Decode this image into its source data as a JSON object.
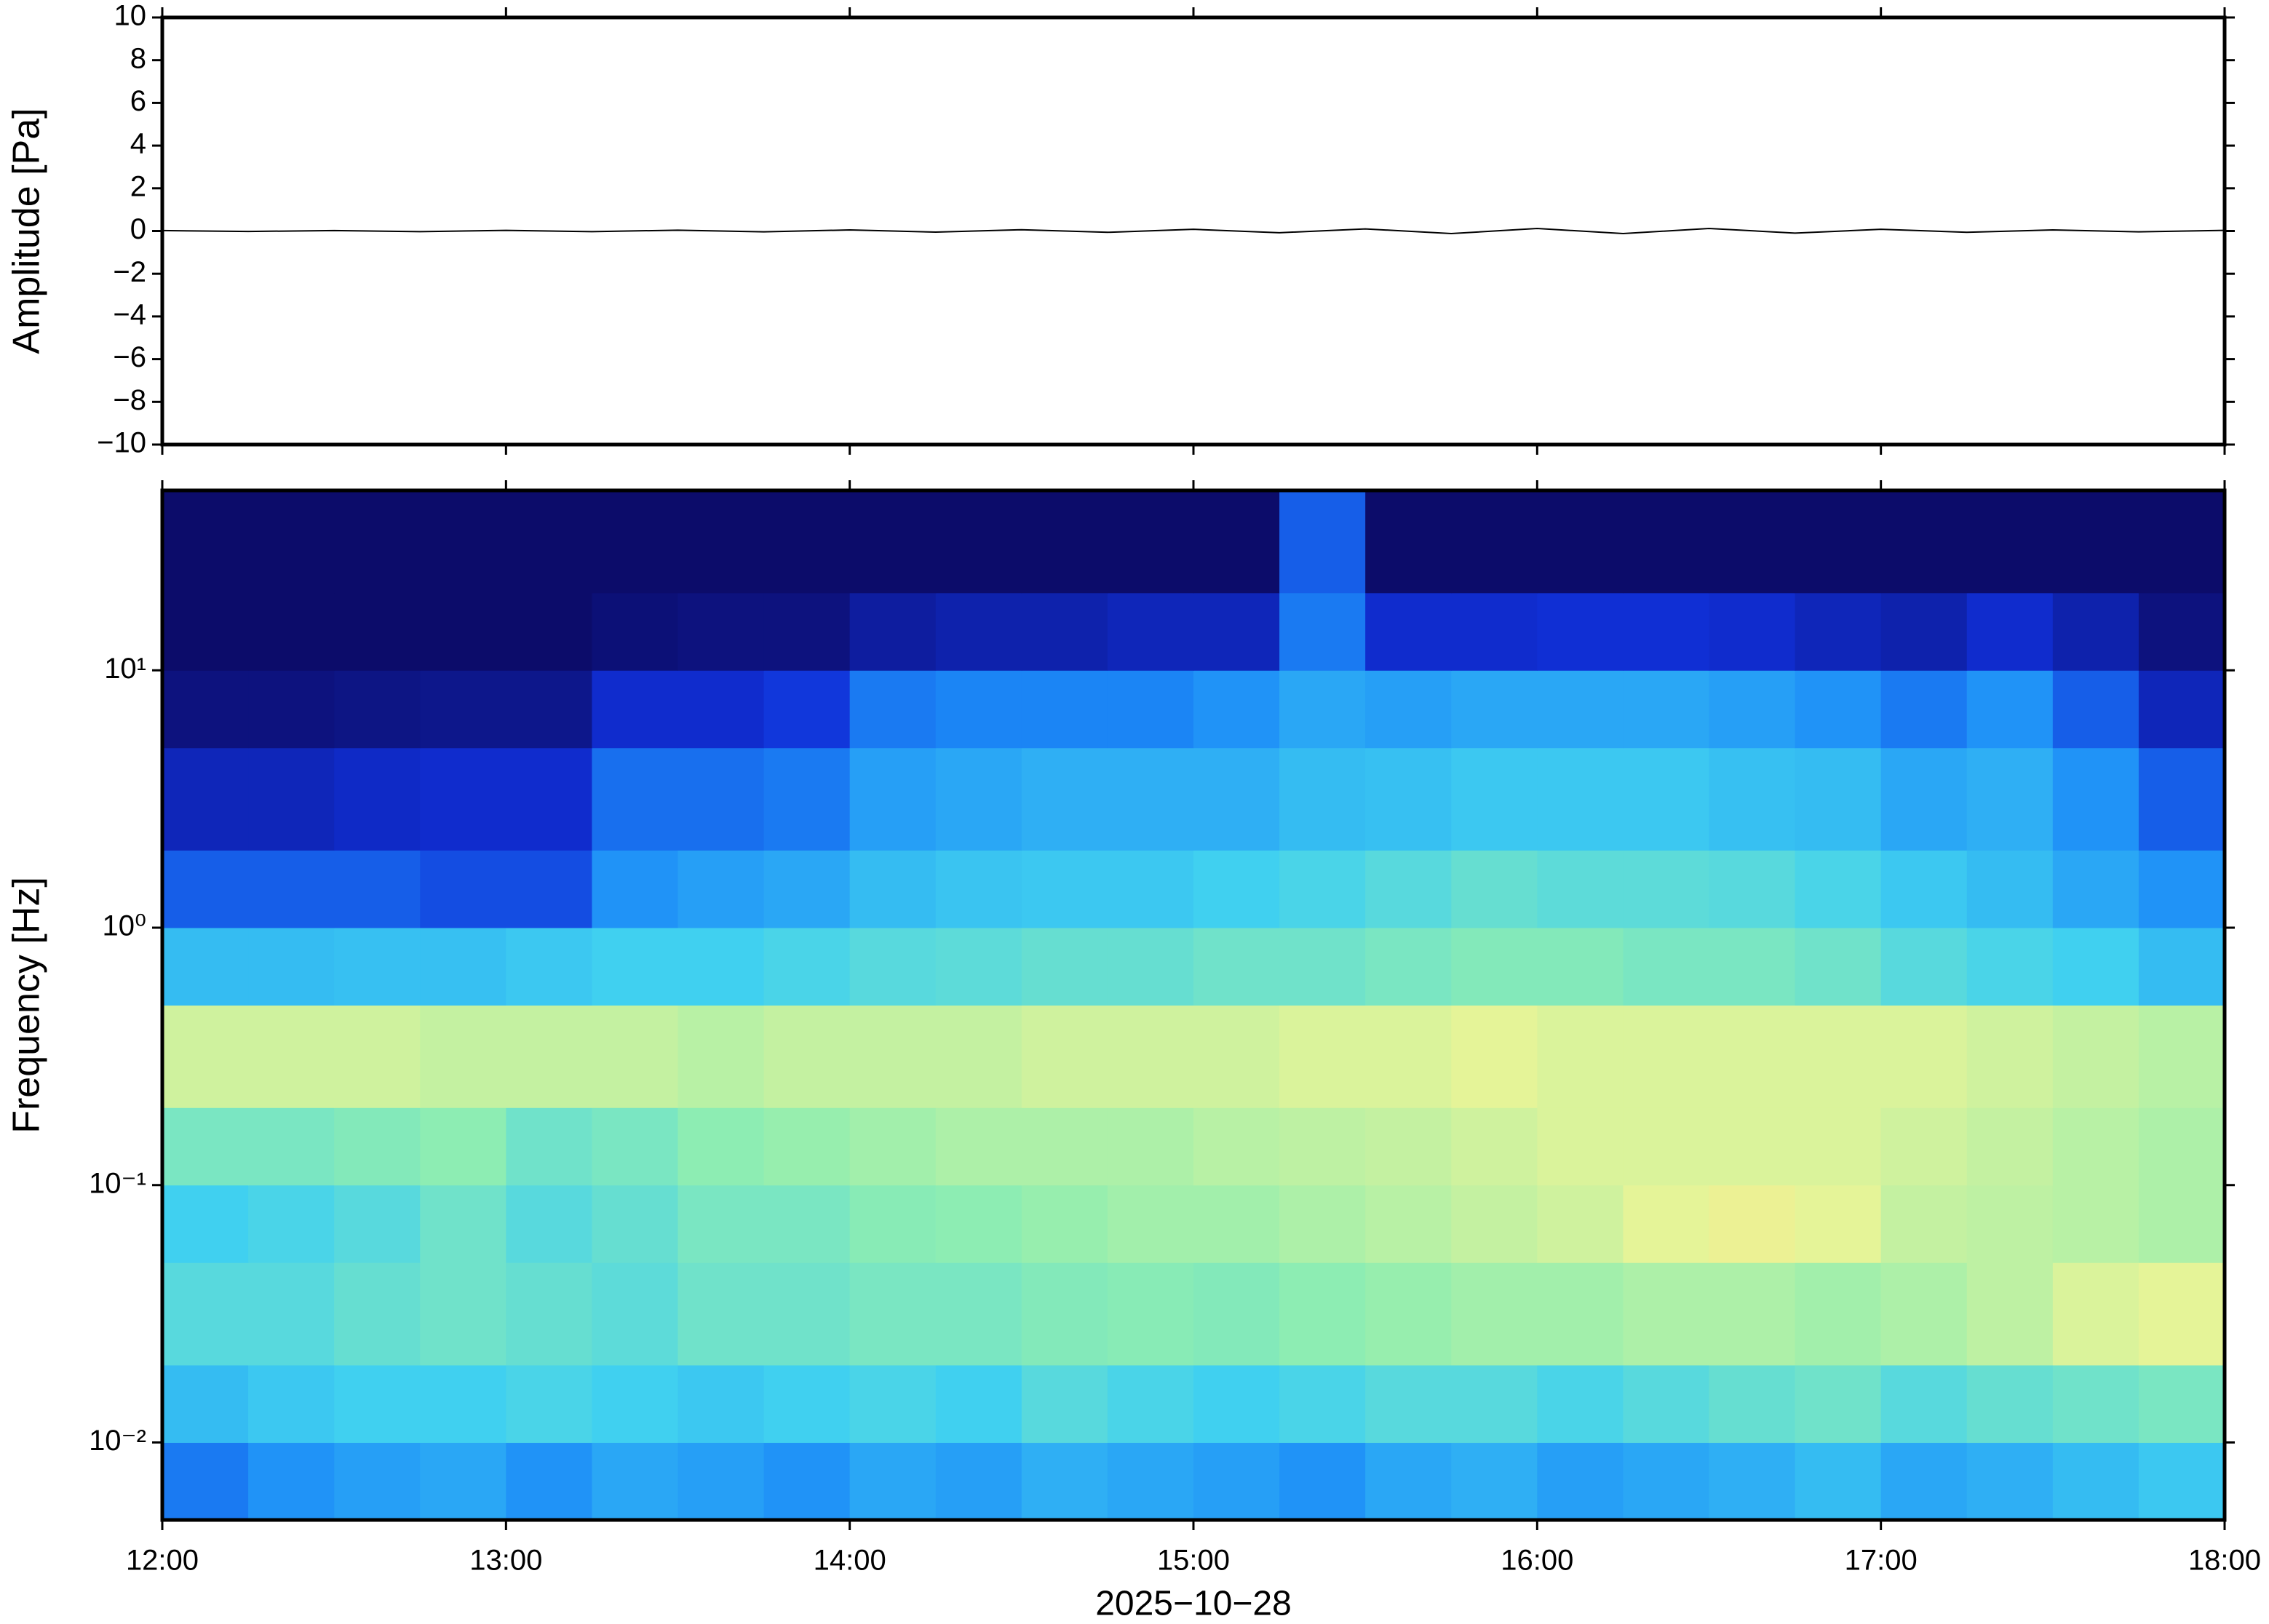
{
  "chart_data": [
    {
      "type": "line",
      "ylabel": "Amplitude [Pa]",
      "color": "#000000",
      "xlim": [
        12,
        18
      ],
      "xticks": [
        12,
        13,
        14,
        15,
        16,
        17,
        18
      ],
      "ylim": [
        -10,
        10
      ],
      "yticks": [
        {
          "value": -10,
          "label": "−10"
        },
        {
          "value": -8,
          "label": "−8"
        },
        {
          "value": -6,
          "label": "−6"
        },
        {
          "value": -4,
          "label": "−4"
        },
        {
          "value": -2,
          "label": "−2"
        },
        0,
        2,
        4,
        6,
        8,
        10
      ],
      "x": [
        12,
        12.25,
        12.5,
        12.75,
        13,
        13.25,
        13.5,
        13.75,
        14,
        14.25,
        14.5,
        14.75,
        15,
        15.25,
        15.5,
        15.75,
        16,
        16.25,
        16.5,
        16.75,
        17,
        17.25,
        17.5,
        17.75,
        18
      ],
      "values": [
        0.02,
        -0.02,
        0.02,
        -0.03,
        0.03,
        -0.03,
        0.04,
        -0.04,
        0.05,
        -0.05,
        0.06,
        -0.06,
        0.08,
        -0.08,
        0.1,
        -0.12,
        0.12,
        -0.12,
        0.12,
        -0.1,
        0.08,
        -0.06,
        0.05,
        -0.04,
        0.03
      ]
    },
    {
      "type": "heatmap",
      "ylabel": "Frequency [Hz]",
      "xlabel": "2025−10−28",
      "log_y": true,
      "xlim": [
        12,
        18
      ],
      "xticks": [
        {
          "value": 12,
          "label": "12:00"
        },
        {
          "value": 13,
          "label": "13:00"
        },
        {
          "value": 14,
          "label": "14:00"
        },
        {
          "value": 15,
          "label": "15:00"
        },
        {
          "value": 16,
          "label": "16:00"
        },
        {
          "value": 17,
          "label": "17:00"
        },
        {
          "value": 18,
          "label": "18:00"
        }
      ],
      "ylim": [
        0.005,
        50
      ],
      "yticks": [
        {
          "value": 0.01,
          "label": "10⁻²"
        },
        {
          "value": 0.1,
          "label": "10⁻¹"
        },
        {
          "value": 1,
          "label": "10⁰"
        },
        {
          "value": 10,
          "label": "10¹"
        }
      ],
      "zlim": [
        0,
        1
      ],
      "colormap": [
        "#0c0c6a",
        "#1030d8",
        "#1c8cf8",
        "#40d0f0",
        "#90eeb0",
        "#ecf496",
        "#f0b070"
      ],
      "x_edges": [
        12,
        12.25,
        12.5,
        12.75,
        13,
        13.25,
        13.5,
        13.75,
        14,
        14.25,
        14.5,
        14.75,
        15,
        15.25,
        15.5,
        15.75,
        16,
        16.25,
        16.5,
        16.75,
        17,
        17.25,
        17.5,
        17.75,
        18
      ],
      "y_edges": [
        0.005,
        0.01,
        0.02,
        0.05,
        0.1,
        0.2,
        0.5,
        1,
        2,
        5,
        10,
        20,
        50
      ],
      "z": [
        [
          0.3,
          0.35,
          0.38,
          0.4,
          0.35,
          0.4,
          0.38,
          0.35,
          0.4,
          0.38,
          0.42,
          0.4,
          0.38,
          0.35,
          0.4,
          0.42,
          0.38,
          0.4,
          0.42,
          0.45,
          0.4,
          0.42,
          0.45,
          0.48
        ],
        [
          0.45,
          0.48,
          0.5,
          0.5,
          0.52,
          0.5,
          0.48,
          0.5,
          0.52,
          0.5,
          0.55,
          0.52,
          0.5,
          0.52,
          0.55,
          0.55,
          0.52,
          0.55,
          0.58,
          0.6,
          0.55,
          0.58,
          0.6,
          0.62
        ],
        [
          0.55,
          0.55,
          0.58,
          0.6,
          0.58,
          0.56,
          0.6,
          0.6,
          0.62,
          0.62,
          0.64,
          0.65,
          0.64,
          0.66,
          0.68,
          0.7,
          0.7,
          0.72,
          0.72,
          0.7,
          0.72,
          0.75,
          0.8,
          0.82
        ],
        [
          0.5,
          0.52,
          0.55,
          0.6,
          0.55,
          0.58,
          0.62,
          0.62,
          0.65,
          0.66,
          0.68,
          0.7,
          0.7,
          0.72,
          0.74,
          0.76,
          0.78,
          0.82,
          0.84,
          0.82,
          0.76,
          0.75,
          0.74,
          0.72
        ],
        [
          0.62,
          0.62,
          0.64,
          0.66,
          0.6,
          0.62,
          0.66,
          0.68,
          0.7,
          0.72,
          0.72,
          0.72,
          0.74,
          0.75,
          0.76,
          0.78,
          0.8,
          0.8,
          0.8,
          0.8,
          0.78,
          0.76,
          0.74,
          0.72
        ],
        [
          0.78,
          0.78,
          0.78,
          0.76,
          0.76,
          0.76,
          0.74,
          0.76,
          0.76,
          0.76,
          0.78,
          0.78,
          0.78,
          0.8,
          0.8,
          0.82,
          0.8,
          0.8,
          0.8,
          0.8,
          0.8,
          0.78,
          0.76,
          0.74
        ],
        [
          0.45,
          0.45,
          0.46,
          0.46,
          0.48,
          0.5,
          0.5,
          0.52,
          0.55,
          0.56,
          0.58,
          0.58,
          0.6,
          0.6,
          0.62,
          0.64,
          0.64,
          0.62,
          0.62,
          0.6,
          0.55,
          0.52,
          0.5,
          0.45
        ],
        [
          0.25,
          0.25,
          0.25,
          0.22,
          0.22,
          0.35,
          0.38,
          0.4,
          0.45,
          0.47,
          0.48,
          0.48,
          0.5,
          0.52,
          0.55,
          0.58,
          0.56,
          0.56,
          0.55,
          0.52,
          0.48,
          0.45,
          0.4,
          0.35
        ],
        [
          0.12,
          0.12,
          0.14,
          0.15,
          0.15,
          0.28,
          0.28,
          0.3,
          0.38,
          0.4,
          0.42,
          0.42,
          0.42,
          0.45,
          0.46,
          0.48,
          0.48,
          0.48,
          0.46,
          0.45,
          0.4,
          0.42,
          0.35,
          0.25
        ],
        [
          0.03,
          0.03,
          0.04,
          0.05,
          0.05,
          0.15,
          0.15,
          0.18,
          0.3,
          0.32,
          0.32,
          0.32,
          0.35,
          0.4,
          0.38,
          0.4,
          0.4,
          0.4,
          0.38,
          0.35,
          0.3,
          0.35,
          0.25,
          0.12
        ],
        [
          0,
          0,
          0,
          0,
          0,
          0.02,
          0.03,
          0.03,
          0.08,
          0.1,
          0.1,
          0.12,
          0.12,
          0.3,
          0.15,
          0.15,
          0.16,
          0.16,
          0.15,
          0.12,
          0.1,
          0.15,
          0.1,
          0.03
        ],
        [
          0,
          0,
          0,
          0,
          0,
          0,
          0,
          0,
          0,
          0,
          0,
          0,
          0,
          0.25,
          0,
          0,
          0,
          0,
          0,
          0,
          0,
          0,
          0,
          0
        ]
      ]
    }
  ]
}
